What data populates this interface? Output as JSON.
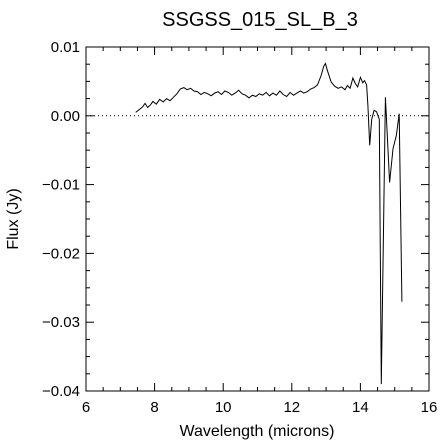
{
  "chart_data": {
    "type": "line",
    "title": "SSGSS_015_SL_B_3",
    "xlabel": "Wavelength (microns)",
    "ylabel": "Flux (Jy)",
    "xlim": [
      6,
      16
    ],
    "ylim": [
      -0.04,
      0.01
    ],
    "xticks": [
      6,
      8,
      10,
      12,
      14,
      16
    ],
    "xtick_labels": [
      "6",
      "8",
      "10",
      "12",
      "14",
      "16"
    ],
    "yticks": [
      -0.04,
      -0.03,
      -0.02,
      -0.01,
      0.0,
      0.01
    ],
    "ytick_labels": [
      "−0.04",
      "−0.03",
      "−0.02",
      "−0.01",
      "0.00",
      "0.01"
    ],
    "zero_line": {
      "y": 0,
      "style": "dotted"
    },
    "grid": false,
    "series": [
      {
        "color": "#000000",
        "points": [
          [
            7.45,
            0.0005
          ],
          [
            7.55,
            0.0009
          ],
          [
            7.65,
            0.0013
          ],
          [
            7.72,
            0.0018
          ],
          [
            7.8,
            0.0012
          ],
          [
            7.88,
            0.0016
          ],
          [
            7.95,
            0.0021
          ],
          [
            8.05,
            0.0017
          ],
          [
            8.15,
            0.0024
          ],
          [
            8.25,
            0.002
          ],
          [
            8.35,
            0.0025
          ],
          [
            8.45,
            0.0022
          ],
          [
            8.55,
            0.0027
          ],
          [
            8.65,
            0.0032
          ],
          [
            8.75,
            0.0039
          ],
          [
            8.85,
            0.0041
          ],
          [
            8.95,
            0.0038
          ],
          [
            9.05,
            0.004
          ],
          [
            9.15,
            0.0036
          ],
          [
            9.25,
            0.0035
          ],
          [
            9.35,
            0.0031
          ],
          [
            9.45,
            0.0034
          ],
          [
            9.55,
            0.0032
          ],
          [
            9.65,
            0.0029
          ],
          [
            9.75,
            0.0033
          ],
          [
            9.85,
            0.0035
          ],
          [
            9.95,
            0.0031
          ],
          [
            10.05,
            0.0036
          ],
          [
            10.15,
            0.0034
          ],
          [
            10.25,
            0.003
          ],
          [
            10.35,
            0.0033
          ],
          [
            10.45,
            0.0037
          ],
          [
            10.55,
            0.0032
          ],
          [
            10.65,
            0.003
          ],
          [
            10.75,
            0.0026
          ],
          [
            10.85,
            0.003
          ],
          [
            10.95,
            0.0028
          ],
          [
            11.05,
            0.0032
          ],
          [
            11.15,
            0.003
          ],
          [
            11.25,
            0.0034
          ],
          [
            11.35,
            0.0029
          ],
          [
            11.45,
            0.0033
          ],
          [
            11.55,
            0.003
          ],
          [
            11.65,
            0.0036
          ],
          [
            11.75,
            0.0031
          ],
          [
            11.85,
            0.0028
          ],
          [
            11.95,
            0.0034
          ],
          [
            12.05,
            0.003
          ],
          [
            12.15,
            0.0033
          ],
          [
            12.25,
            0.0036
          ],
          [
            12.35,
            0.0033
          ],
          [
            12.45,
            0.0035
          ],
          [
            12.55,
            0.0039
          ],
          [
            12.65,
            0.0041
          ],
          [
            12.75,
            0.0045
          ],
          [
            12.85,
            0.0058
          ],
          [
            12.93,
            0.0072
          ],
          [
            12.98,
            0.0076
          ],
          [
            13.05,
            0.0064
          ],
          [
            13.15,
            0.0049
          ],
          [
            13.25,
            0.0043
          ],
          [
            13.35,
            0.004
          ],
          [
            13.45,
            0.0042
          ],
          [
            13.55,
            0.0038
          ],
          [
            13.62,
            0.0044
          ],
          [
            13.7,
            0.004
          ],
          [
            13.78,
            0.0055
          ],
          [
            13.85,
            0.0047
          ],
          [
            13.92,
            0.0042
          ],
          [
            14.0,
            0.0056
          ],
          [
            14.07,
            0.0048
          ],
          [
            14.12,
            0.0051
          ],
          [
            14.18,
            0.0045
          ],
          [
            14.22,
            0.0015
          ],
          [
            14.27,
            -0.0043
          ],
          [
            14.33,
            -0.0005
          ],
          [
            14.4,
            0.0008
          ],
          [
            14.47,
            0.0006
          ],
          [
            14.55,
            -0.0005
          ],
          [
            14.61,
            -0.039
          ],
          [
            14.73,
            0.0027
          ],
          [
            14.85,
            -0.0097
          ],
          [
            14.95,
            -0.0048
          ],
          [
            15.05,
            -0.0028
          ],
          [
            15.13,
            0.0003
          ],
          [
            15.21,
            -0.027
          ]
        ]
      }
    ]
  }
}
